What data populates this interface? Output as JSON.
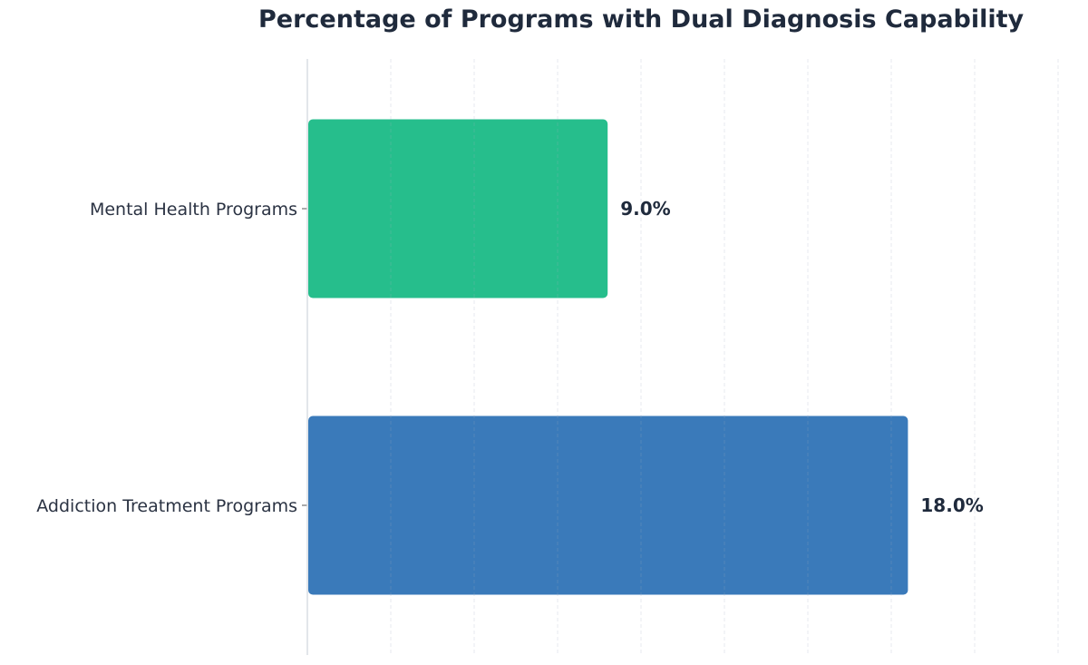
{
  "chart_data": {
    "type": "bar",
    "orientation": "horizontal",
    "title": "Percentage of Programs with Dual Diagnosis Capability",
    "xlabel": "",
    "ylabel": "",
    "categories": [
      "Mental Health Programs",
      "Addiction Treatment Programs"
    ],
    "values": [
      9.0,
      18.0
    ],
    "data_labels": [
      "9.0%",
      "18.0%"
    ],
    "colors": [
      "#26be8c",
      "#3a7aba"
    ],
    "xlim": [
      0,
      23
    ],
    "x_grid_step": 2.5,
    "grid": true,
    "x_tick_labels_visible": false,
    "legend": "none"
  }
}
